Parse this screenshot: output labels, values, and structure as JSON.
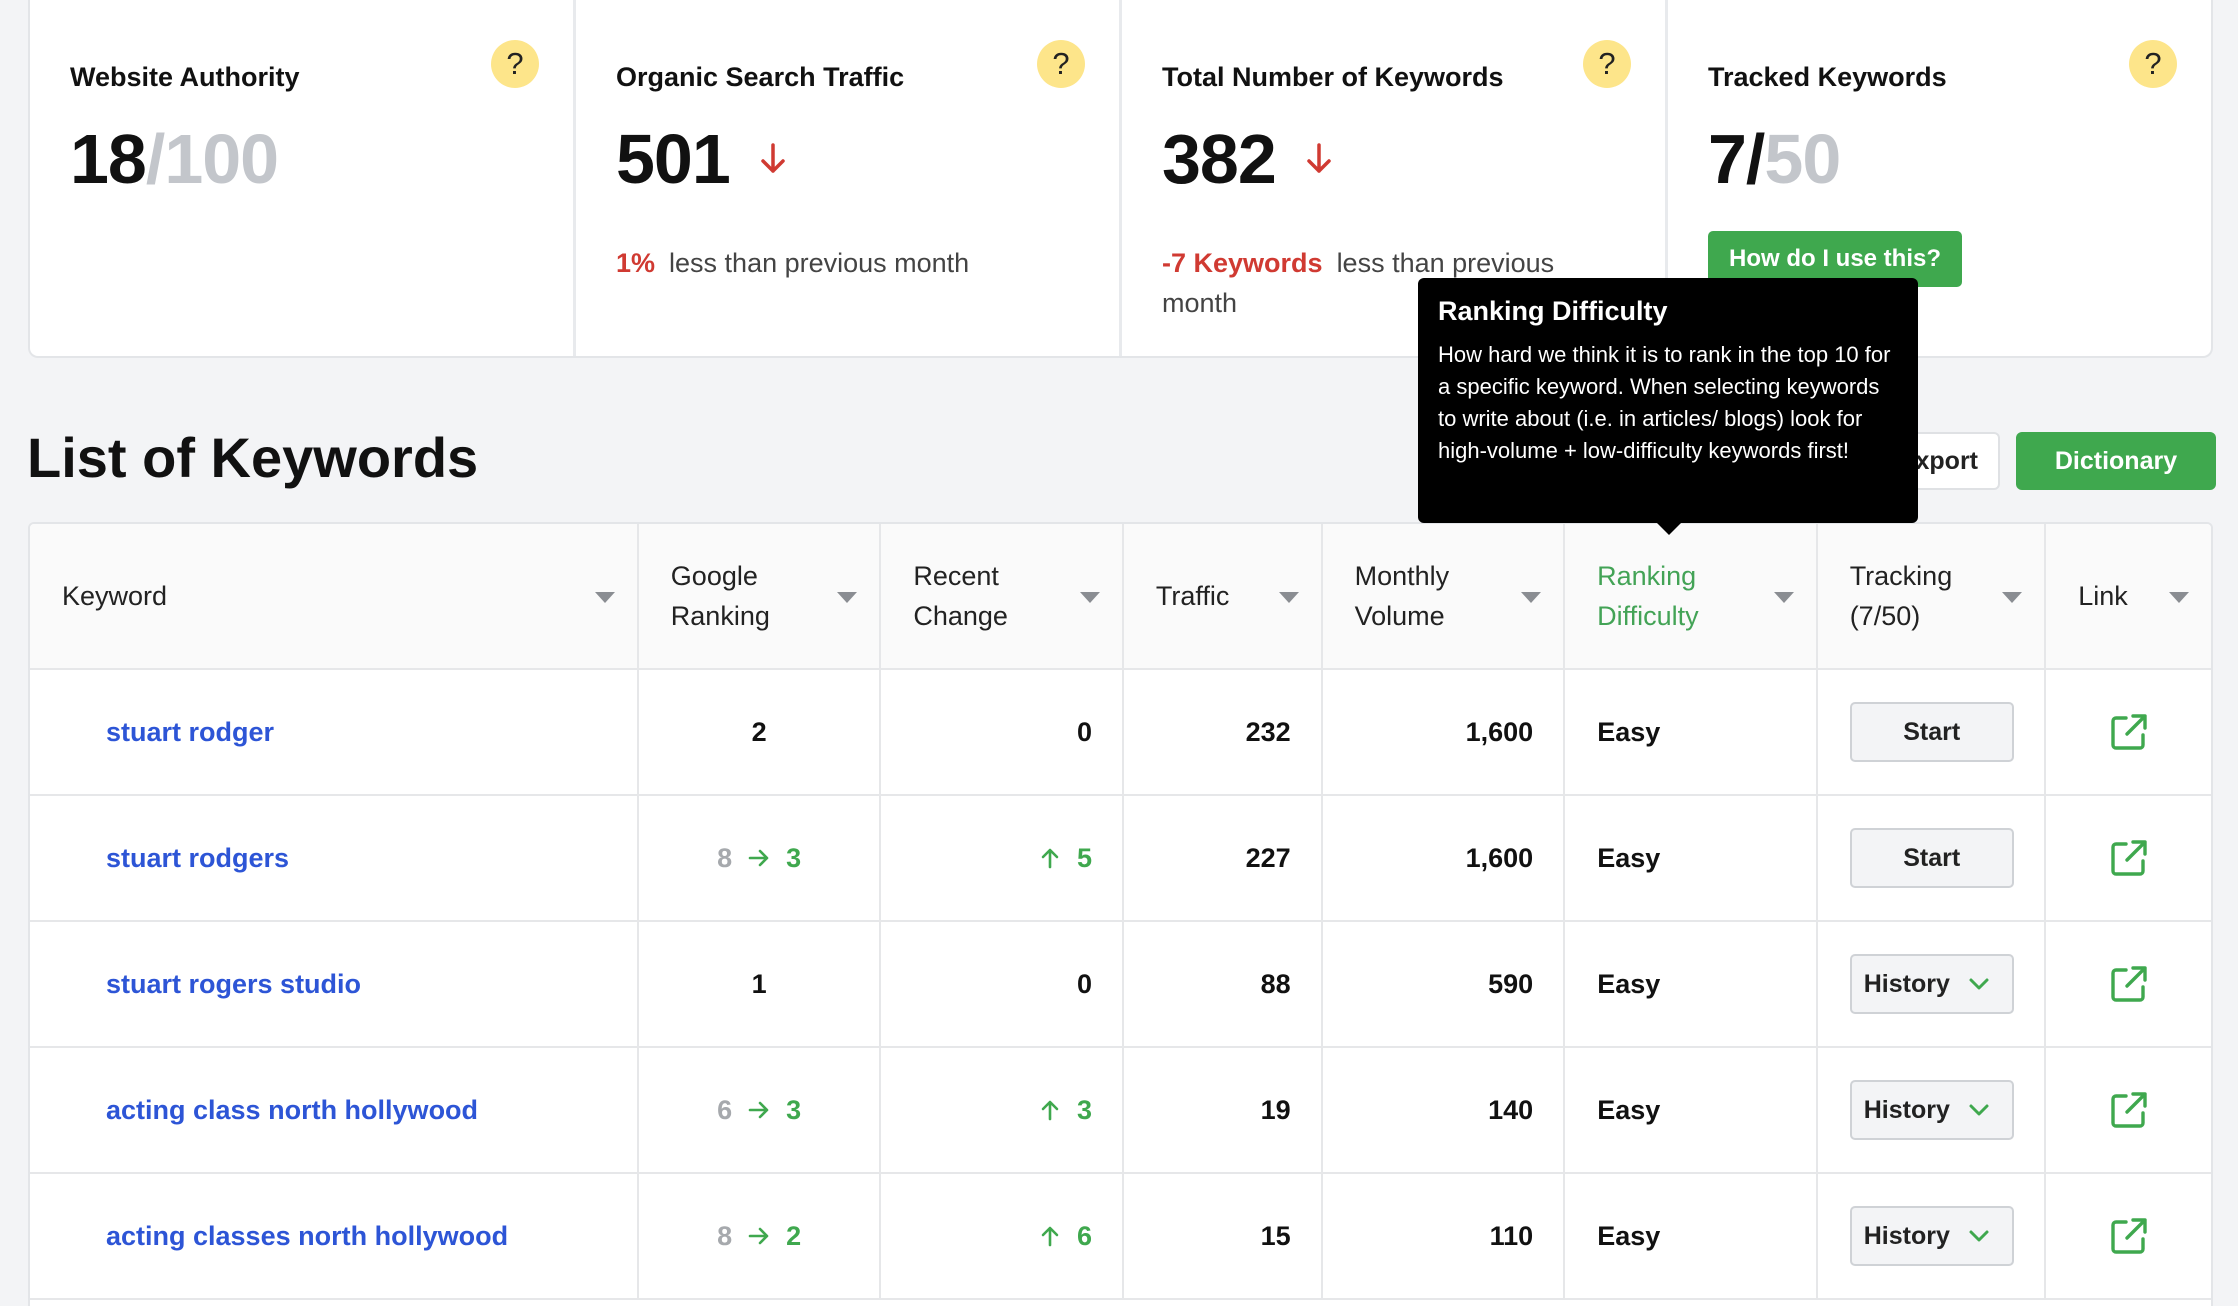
{
  "cards": [
    {
      "title": "Website Authority",
      "value": "18",
      "value_suffix": "/100",
      "help": "?"
    },
    {
      "title": "Organic Search Traffic",
      "value": "501",
      "trend": "down",
      "delta_value": "1%",
      "delta_text": "less than previous month",
      "help": "?"
    },
    {
      "title": "Total Number of Keywords",
      "value": "382",
      "trend": "down",
      "delta_value": "-7 Keywords",
      "delta_text": "less than previous month",
      "help": "?"
    },
    {
      "title": "Tracked Keywords",
      "value": "7/",
      "value_suffix": "50",
      "button": "How do I use this?",
      "help": "?"
    }
  ],
  "section": {
    "title": "List of Keywords",
    "export_label": "xport",
    "dictionary_label": "Dictionary"
  },
  "tooltip": {
    "title": "Ranking Difficulty",
    "body": "How hard we think it is to rank in the top 10 for a specific keyword. When selecting keywords to write about (i.e. in articles/ blogs) look for high-volume + low-difficulty keywords first!"
  },
  "table": {
    "headers": [
      {
        "l1": "Keyword",
        "l2": ""
      },
      {
        "l1": "Google",
        "l2": "Ranking"
      },
      {
        "l1": "Recent",
        "l2": "Change"
      },
      {
        "l1": "Traffic",
        "l2": ""
      },
      {
        "l1": "Monthly",
        "l2": "Volume"
      },
      {
        "l1": "Ranking",
        "l2": "Difficulty"
      },
      {
        "l1": "Tracking",
        "l2": "(7/50)"
      },
      {
        "l1": "Link",
        "l2": ""
      }
    ],
    "rows": [
      {
        "keyword": "stuart rodger",
        "rank_old": "",
        "rank": "2",
        "change": "0",
        "change_up": false,
        "traffic": "232",
        "volume": "1,600",
        "difficulty": "Easy",
        "tracking": "Start"
      },
      {
        "keyword": "stuart rodgers",
        "rank_old": "8",
        "rank": "3",
        "change": "5",
        "change_up": true,
        "traffic": "227",
        "volume": "1,600",
        "difficulty": "Easy",
        "tracking": "Start"
      },
      {
        "keyword": "stuart rogers studio",
        "rank_old": "",
        "rank": "1",
        "change": "0",
        "change_up": false,
        "traffic": "88",
        "volume": "590",
        "difficulty": "Easy",
        "tracking": "History"
      },
      {
        "keyword": "acting class north hollywood",
        "rank_old": "6",
        "rank": "3",
        "change": "3",
        "change_up": true,
        "traffic": "19",
        "volume": "140",
        "difficulty": "Easy",
        "tracking": "History"
      },
      {
        "keyword": "acting classes north hollywood",
        "rank_old": "8",
        "rank": "2",
        "change": "6",
        "change_up": true,
        "traffic": "15",
        "volume": "110",
        "difficulty": "Easy",
        "tracking": "History"
      }
    ]
  },
  "colors": {
    "accent_green": "#3fa84e",
    "link_blue": "#2d55d6",
    "down_red": "#d03a32",
    "help_yellow": "#fde58a"
  },
  "icons": {
    "help": "question-mark-icon",
    "trend_down": "arrow-down-icon",
    "trend_up": "arrow-up-icon",
    "rank_change": "arrow-right-icon",
    "external": "external-link-icon",
    "dropdown": "chevron-down-icon",
    "sort": "sort-caret-icon"
  }
}
